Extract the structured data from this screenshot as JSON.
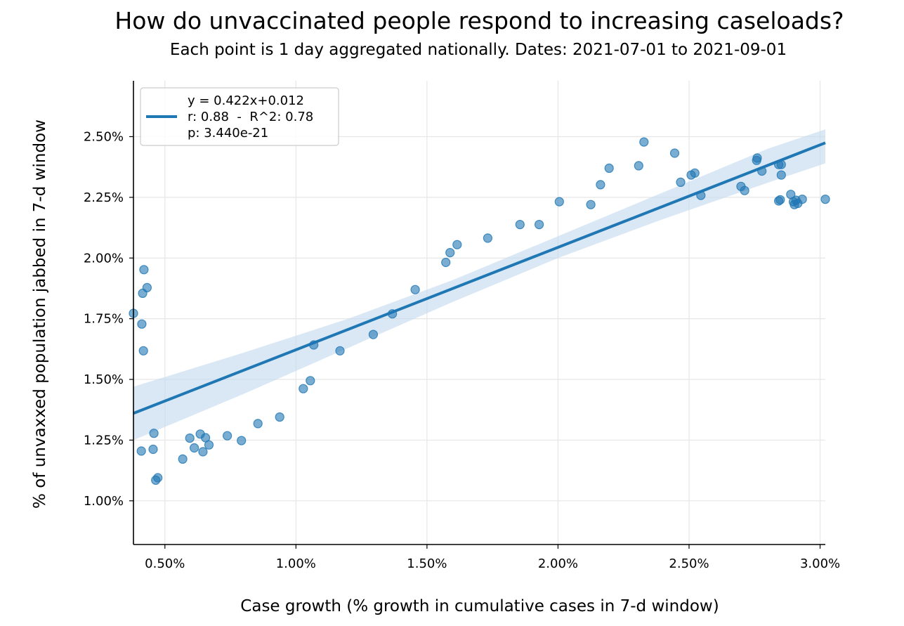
{
  "colors": {
    "points": "#1f77b4",
    "fit_line": "#1f77b4",
    "ci_band": "#c6dbef",
    "grid": "#e6e6e6",
    "axis": "#000000"
  },
  "chart_data": {
    "type": "scatter",
    "title": "How do unvaccinated people respond to increasing caseloads?",
    "subtitle": "Each point is 1 day aggregated nationally. Dates: 2021-07-01 to 2021-09-01",
    "xlabel": "Case growth (% growth in cumulative cases in 7-d window)",
    "ylabel": "% of unvaxxed population jabbed in 7-d window",
    "xlim": [
      0.0038,
      0.0302
    ],
    "ylim": [
      0.0082,
      0.0273
    ],
    "xticks": [
      0.005,
      0.01,
      0.015,
      0.02,
      0.025,
      0.03
    ],
    "xtick_labels": [
      "0.50%",
      "1.00%",
      "1.50%",
      "2.00%",
      "2.50%",
      "3.00%"
    ],
    "yticks": [
      0.01,
      0.0125,
      0.015,
      0.0175,
      0.02,
      0.0225,
      0.025
    ],
    "ytick_labels": [
      "1.00%",
      "1.25%",
      "1.50%",
      "1.75%",
      "2.00%",
      "2.25%",
      "2.50%"
    ],
    "grid": true,
    "legend_position": "top-left",
    "legend": [
      "y = 0.422x+0.012",
      "r: 0.88  -  R^2: 0.78",
      "p: 3.440e-21"
    ],
    "fit": {
      "slope": 0.422,
      "intercept": 0.012
    },
    "ci_band": {
      "x": [
        0.0038,
        0.008,
        0.012,
        0.016,
        0.02,
        0.024,
        0.028,
        0.0302
      ],
      "lower": [
        0.0125,
        0.0144,
        0.0163,
        0.0182,
        0.02,
        0.0216,
        0.0231,
        0.0239
      ],
      "upper": [
        0.0147,
        0.0161,
        0.0175,
        0.0191,
        0.0209,
        0.0227,
        0.0245,
        0.0253
      ]
    },
    "points": [
      {
        "x": 0.0038,
        "y": 0.01772
      },
      {
        "x": 0.0041,
        "y": 0.01205
      },
      {
        "x": 0.00412,
        "y": 0.01728
      },
      {
        "x": 0.00415,
        "y": 0.01855
      },
      {
        "x": 0.00418,
        "y": 0.01618
      },
      {
        "x": 0.0042,
        "y": 0.01952
      },
      {
        "x": 0.00432,
        "y": 0.01878
      },
      {
        "x": 0.00455,
        "y": 0.01212
      },
      {
        "x": 0.00458,
        "y": 0.01278
      },
      {
        "x": 0.00465,
        "y": 0.01085
      },
      {
        "x": 0.00473,
        "y": 0.01095
      },
      {
        "x": 0.00568,
        "y": 0.01172
      },
      {
        "x": 0.00595,
        "y": 0.01258
      },
      {
        "x": 0.00612,
        "y": 0.01218
      },
      {
        "x": 0.00635,
        "y": 0.01275
      },
      {
        "x": 0.00645,
        "y": 0.01202
      },
      {
        "x": 0.00655,
        "y": 0.0126
      },
      {
        "x": 0.00668,
        "y": 0.0123
      },
      {
        "x": 0.00738,
        "y": 0.01268
      },
      {
        "x": 0.00792,
        "y": 0.01248
      },
      {
        "x": 0.00855,
        "y": 0.01318
      },
      {
        "x": 0.00938,
        "y": 0.01345
      },
      {
        "x": 0.01028,
        "y": 0.01462
      },
      {
        "x": 0.01055,
        "y": 0.01495
      },
      {
        "x": 0.01068,
        "y": 0.01642
      },
      {
        "x": 0.01168,
        "y": 0.01618
      },
      {
        "x": 0.01295,
        "y": 0.01685
      },
      {
        "x": 0.01368,
        "y": 0.0177
      },
      {
        "x": 0.01455,
        "y": 0.0187
      },
      {
        "x": 0.01572,
        "y": 0.01982
      },
      {
        "x": 0.01588,
        "y": 0.02022
      },
      {
        "x": 0.01615,
        "y": 0.02055
      },
      {
        "x": 0.01732,
        "y": 0.02082
      },
      {
        "x": 0.01855,
        "y": 0.02138
      },
      {
        "x": 0.01928,
        "y": 0.02138
      },
      {
        "x": 0.02005,
        "y": 0.02232
      },
      {
        "x": 0.02125,
        "y": 0.0222
      },
      {
        "x": 0.02162,
        "y": 0.02302
      },
      {
        "x": 0.02195,
        "y": 0.0237
      },
      {
        "x": 0.02308,
        "y": 0.0238
      },
      {
        "x": 0.02328,
        "y": 0.02478
      },
      {
        "x": 0.02445,
        "y": 0.02432
      },
      {
        "x": 0.02468,
        "y": 0.02312
      },
      {
        "x": 0.02508,
        "y": 0.02342
      },
      {
        "x": 0.02522,
        "y": 0.0235
      },
      {
        "x": 0.02545,
        "y": 0.02258
      },
      {
        "x": 0.02698,
        "y": 0.02295
      },
      {
        "x": 0.02712,
        "y": 0.02278
      },
      {
        "x": 0.02758,
        "y": 0.02402
      },
      {
        "x": 0.0276,
        "y": 0.02412
      },
      {
        "x": 0.02778,
        "y": 0.02358
      },
      {
        "x": 0.02842,
        "y": 0.02385
      },
      {
        "x": 0.02842,
        "y": 0.02235
      },
      {
        "x": 0.02848,
        "y": 0.0224
      },
      {
        "x": 0.02852,
        "y": 0.02385
      },
      {
        "x": 0.02852,
        "y": 0.02342
      },
      {
        "x": 0.02888,
        "y": 0.02262
      },
      {
        "x": 0.02898,
        "y": 0.02232
      },
      {
        "x": 0.02902,
        "y": 0.0222
      },
      {
        "x": 0.02908,
        "y": 0.02238
      },
      {
        "x": 0.02915,
        "y": 0.02225
      },
      {
        "x": 0.02932,
        "y": 0.02242
      },
      {
        "x": 0.0302,
        "y": 0.02242
      }
    ]
  }
}
